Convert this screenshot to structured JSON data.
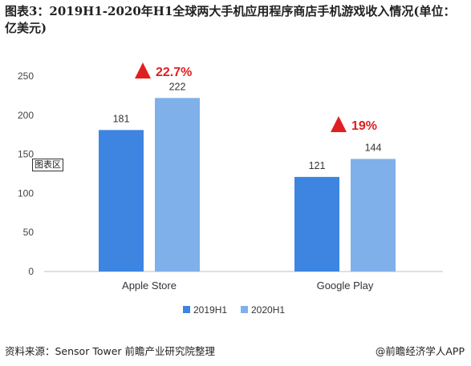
{
  "title": "图表3：2019H1-2020年H1全球两大手机应用程序商店手机游戏收入情况(单位：亿美元)",
  "chart_data": {
    "type": "bar",
    "categories": [
      "Apple Store",
      "Google Play"
    ],
    "series": [
      {
        "name": "2019H1",
        "values": [
          181,
          121
        ],
        "color": "#3d85e0"
      },
      {
        "name": "2020H1",
        "values": [
          222,
          144
        ],
        "color": "#7fb0ea"
      }
    ],
    "ylim": [
      0,
      250
    ],
    "yticks": [
      0,
      50,
      100,
      150,
      200,
      250
    ],
    "grid": false,
    "legend": "bottom",
    "growth_labels": [
      "22.7%",
      "19%"
    ],
    "growth_color": "#e02020"
  },
  "area_label": "图表区",
  "footer": {
    "source": "资料来源：Sensor Tower 前瞻产业研究院整理",
    "brand": "@前瞻经济学人APP"
  }
}
